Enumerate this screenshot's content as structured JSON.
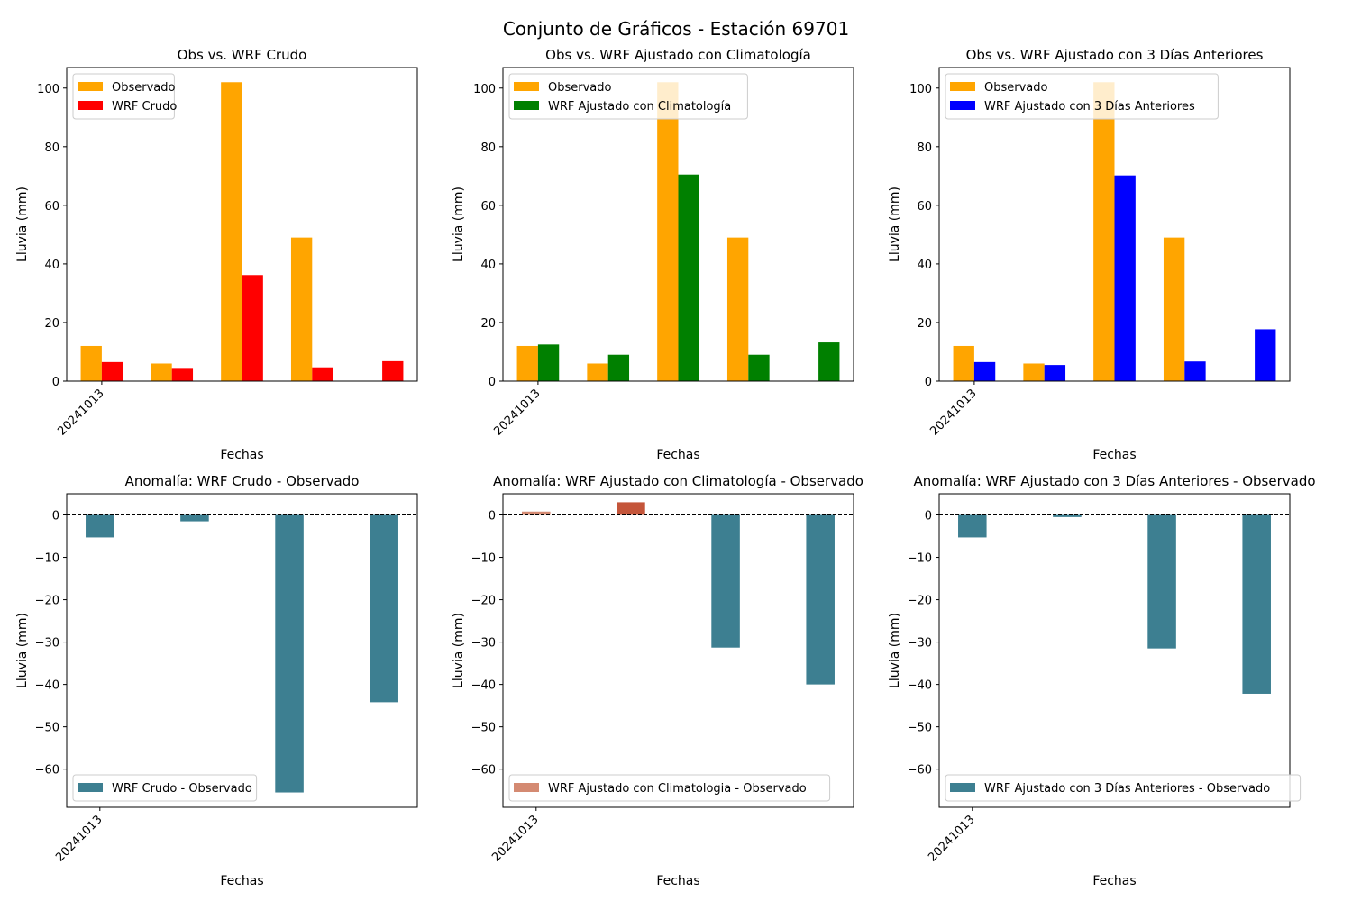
{
  "figure": {
    "title": "Conjunto de Gráficos - Estación 69701"
  },
  "colors": {
    "observado": "#ffa500",
    "wrf_crudo": "#ff0000",
    "wrf_clima": "#008000",
    "wrf_3dias": "#0000ff",
    "anom_neg": "#3d7f91",
    "anom_pos_small": "#d48a72",
    "anom_pos_large": "#c4553a"
  },
  "chart_data": [
    {
      "type": "bar",
      "title": "Obs vs. WRF Crudo",
      "xlabel": "Fechas",
      "ylabel": "Lluvia (mm)",
      "xtick_labels": [
        "20241013"
      ],
      "ylim": [
        0,
        107
      ],
      "yticks": [
        0,
        20,
        40,
        60,
        80,
        100
      ],
      "legend": "top-left",
      "series": [
        {
          "name": "Observado",
          "color": "#ffa500",
          "values": [
            12,
            6,
            102,
            49,
            0
          ]
        },
        {
          "name": "WRF Crudo",
          "color": "#ff0000",
          "values": [
            6.5,
            4.5,
            36.2,
            4.7,
            6.8
          ]
        }
      ]
    },
    {
      "type": "bar",
      "title": "Obs vs. WRF Ajustado con Climatología",
      "xlabel": "Fechas",
      "ylabel": "Lluvia (mm)",
      "xtick_labels": [
        "20241013"
      ],
      "ylim": [
        0,
        107
      ],
      "yticks": [
        0,
        20,
        40,
        60,
        80,
        100
      ],
      "legend": "top-left",
      "series": [
        {
          "name": "Observado",
          "color": "#ffa500",
          "values": [
            12,
            6,
            102,
            49,
            0
          ]
        },
        {
          "name": "WRF Ajustado con Climatología",
          "color": "#008000",
          "values": [
            12.5,
            9,
            70.5,
            9,
            13.2
          ]
        }
      ]
    },
    {
      "type": "bar",
      "title": "Obs vs. WRF Ajustado con 3 Días Anteriores",
      "xlabel": "Fechas",
      "ylabel": "Lluvia (mm)",
      "xtick_labels": [
        "20241013"
      ],
      "ylim": [
        0,
        107
      ],
      "yticks": [
        0,
        20,
        40,
        60,
        80,
        100
      ],
      "legend": "top-left",
      "series": [
        {
          "name": "Observado",
          "color": "#ffa500",
          "values": [
            12,
            6,
            102,
            49,
            0
          ]
        },
        {
          "name": "WRF Ajustado con 3 Días Anteriores",
          "color": "#0000ff",
          "values": [
            6.5,
            5.5,
            70.2,
            6.7,
            17.7
          ]
        }
      ]
    },
    {
      "type": "bar",
      "title": "Anomalía: WRF Crudo - Observado",
      "xlabel": "Fechas",
      "ylabel": "Lluvia (mm)",
      "xtick_labels": [
        "20241013"
      ],
      "ylim": [
        -69,
        5
      ],
      "yticks": [
        0,
        -10,
        -20,
        -30,
        -40,
        -50,
        -60
      ],
      "legend": "bottom-left",
      "series": [
        {
          "name": "WRF Crudo - Observado",
          "color": "#3d7f91",
          "values": [
            -5.3,
            -1.5,
            -65.5,
            -44.2
          ]
        }
      ]
    },
    {
      "type": "bar",
      "title": "Anomalía: WRF Ajustado con Climatología - Observado",
      "xlabel": "Fechas",
      "ylabel": "Lluvia (mm)",
      "xtick_labels": [
        "20241013"
      ],
      "ylim": [
        -69,
        5
      ],
      "yticks": [
        0,
        -10,
        -20,
        -30,
        -40,
        -50,
        -60
      ],
      "legend": "bottom-left",
      "series": [
        {
          "name": "WRF Ajustado con Climatologia - Observado",
          "color": "#d48a72",
          "values": [
            0.8,
            3.0,
            -31.3,
            -40.0
          ]
        }
      ]
    },
    {
      "type": "bar",
      "title": "Anomalía: WRF Ajustado con 3 Días Anteriores - Observado",
      "xlabel": "Fechas",
      "ylabel": "Lluvia (mm)",
      "xtick_labels": [
        "20241013"
      ],
      "ylim": [
        -69,
        5
      ],
      "yticks": [
        0,
        -10,
        -20,
        -30,
        -40,
        -50,
        -60
      ],
      "legend": "bottom-left",
      "series": [
        {
          "name": "WRF Ajustado con 3 Días Anteriores - Observado",
          "color": "#3d7f91",
          "values": [
            -5.3,
            -0.5,
            -31.5,
            -42.2
          ]
        }
      ]
    }
  ]
}
